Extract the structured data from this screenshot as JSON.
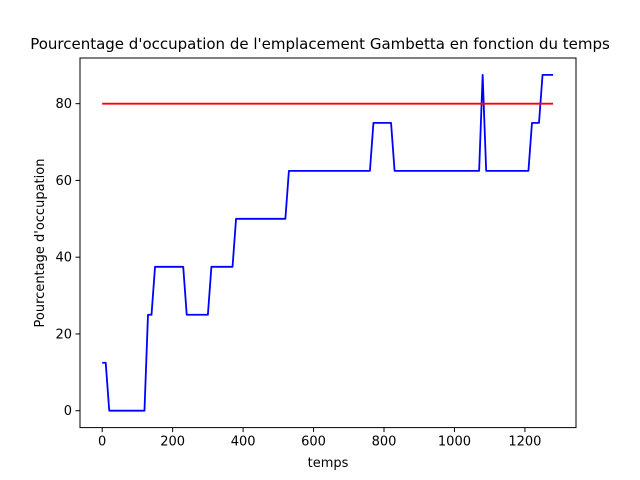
{
  "chart_data": {
    "type": "line",
    "title": "Pourcentage d'occupation de l'emplacement Gambetta en fonction du temps",
    "xlabel": "temps",
    "ylabel": "Pourcentage d'occupation",
    "xlim": [
      -63,
      1345
    ],
    "ylim": [
      -4.4,
      91.9
    ],
    "xticks": [
      0,
      200,
      400,
      600,
      800,
      1000,
      1200
    ],
    "yticks": [
      0,
      20,
      40,
      60,
      80
    ],
    "grid": false,
    "legend": null,
    "series": [
      {
        "color": "#0000ff",
        "x": [
          0,
          10,
          20,
          120,
          130,
          140,
          150,
          230,
          240,
          300,
          310,
          370,
          380,
          520,
          530,
          760,
          770,
          820,
          830,
          1070,
          1080,
          1090,
          1210,
          1220,
          1240,
          1250,
          1280
        ],
        "y": [
          12.5,
          12.5,
          0,
          0,
          25,
          25,
          37.5,
          37.5,
          25,
          25,
          37.5,
          37.5,
          50,
          50,
          62.5,
          62.5,
          75,
          75,
          62.5,
          62.5,
          87.5,
          62.5,
          62.5,
          75,
          75,
          87.5,
          87.5
        ]
      },
      {
        "color": "#ff0000",
        "x": [
          0,
          1280
        ],
        "y": [
          80,
          80
        ]
      }
    ]
  }
}
